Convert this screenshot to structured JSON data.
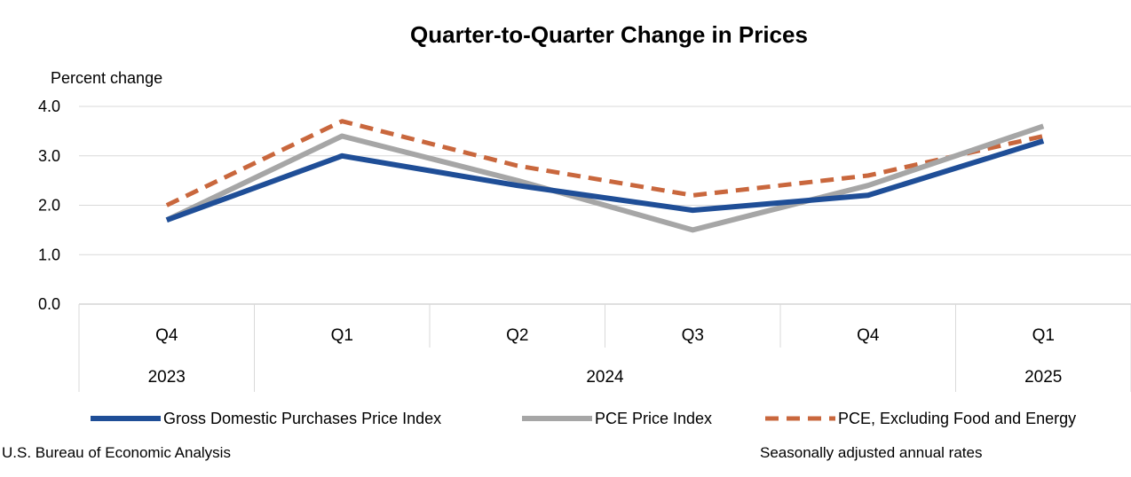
{
  "chart_data": {
    "type": "line",
    "title": "Quarter-to-Quarter Change in Prices",
    "ylabel": "Percent change",
    "xlabel": "",
    "categories": [
      "Q4",
      "Q1",
      "Q2",
      "Q3",
      "Q4",
      "Q1"
    ],
    "year_groups": [
      {
        "label": "2023",
        "span": 1
      },
      {
        "label": "2024",
        "span": 4
      },
      {
        "label": "2025",
        "span": 1
      }
    ],
    "ylim": [
      0,
      4
    ],
    "yticks": [
      "0.0",
      "1.0",
      "2.0",
      "3.0",
      "4.0"
    ],
    "grid": true,
    "legend_position": "bottom",
    "series": [
      {
        "name": "Gross Domestic Purchases Price Index",
        "values": [
          1.7,
          3.0,
          2.4,
          1.9,
          2.2,
          3.3
        ],
        "color": "#1F4E97",
        "style": "solid"
      },
      {
        "name": "PCE Price Index",
        "values": [
          1.7,
          3.4,
          2.5,
          1.5,
          2.4,
          3.6
        ],
        "color": "#A6A6A6",
        "style": "solid"
      },
      {
        "name": "PCE, Excluding Food and Energy",
        "values": [
          2.0,
          3.7,
          2.8,
          2.2,
          2.6,
          3.4
        ],
        "color": "#C9673D",
        "style": "dashed"
      }
    ]
  },
  "footer": {
    "source": "U.S. Bureau of Economic Analysis",
    "note": "Seasonally adjusted annual rates"
  }
}
